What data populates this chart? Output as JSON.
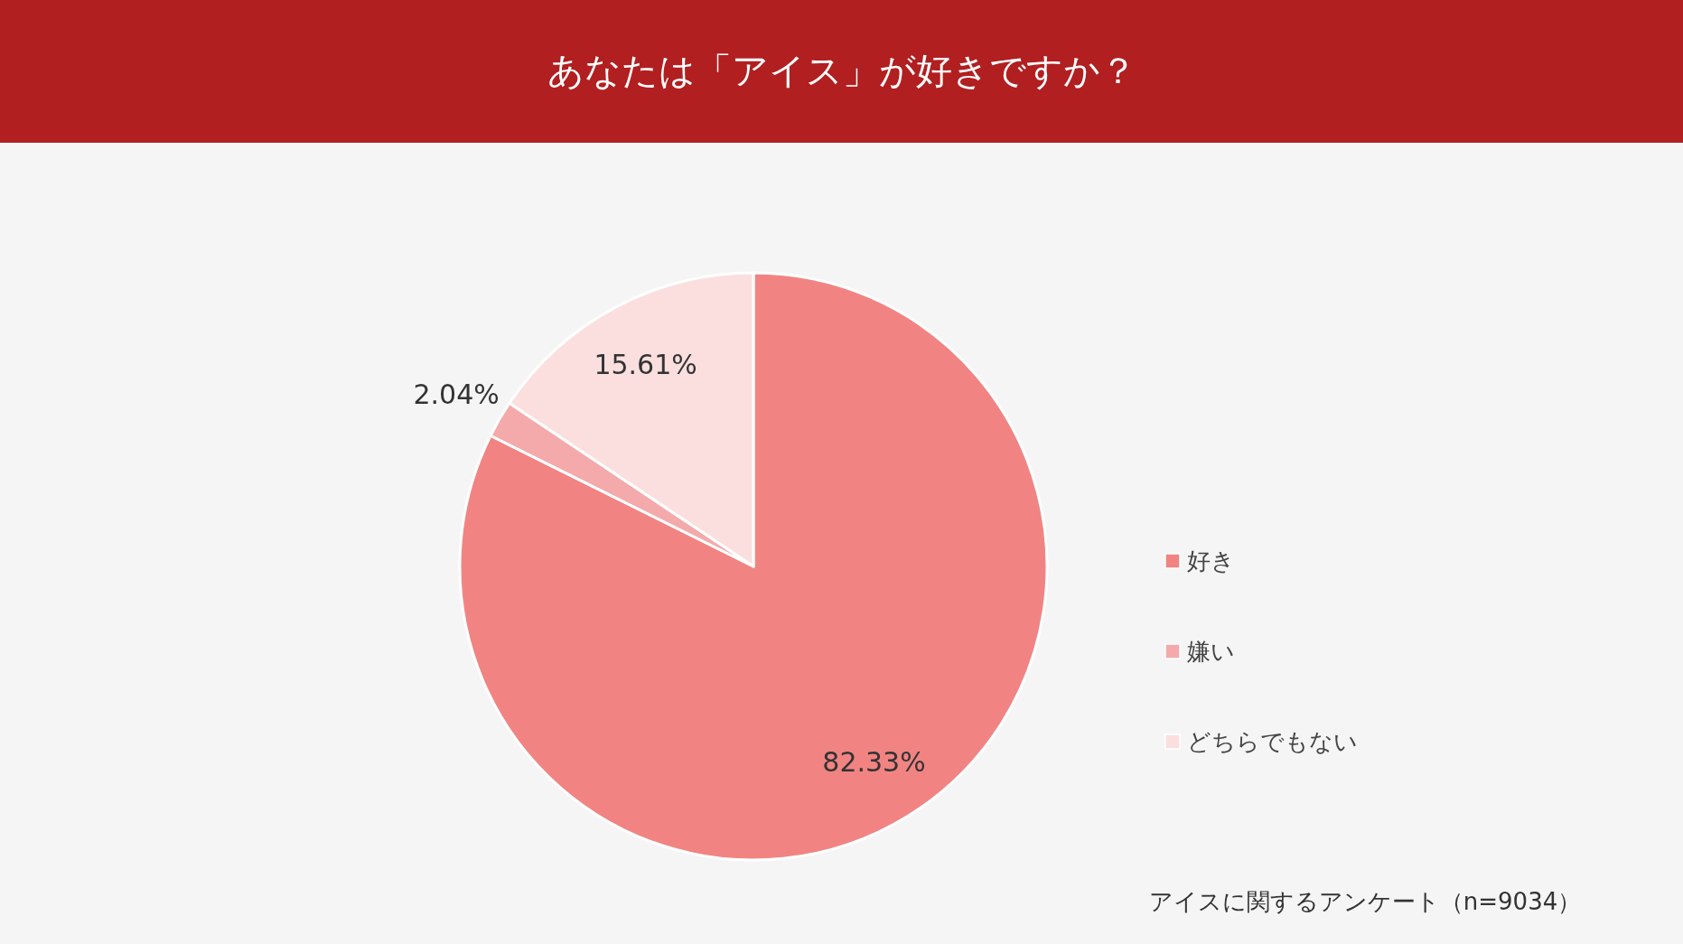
{
  "chart_data": {
    "type": "pie",
    "title": "あなたは「アイス」が好きですか？",
    "categories": [
      "好き",
      "嫌い",
      "どちらでもない"
    ],
    "values": [
      82.33,
      2.04,
      15.61
    ],
    "colors": [
      "#f18482",
      "#f4aaaa",
      "#fbdfdf"
    ],
    "value_labels": [
      "82.33%",
      "2.04%",
      "15.61%"
    ],
    "legend": "right",
    "annotations": [
      "アイスに関するアンケート（n=9034）"
    ]
  }
}
